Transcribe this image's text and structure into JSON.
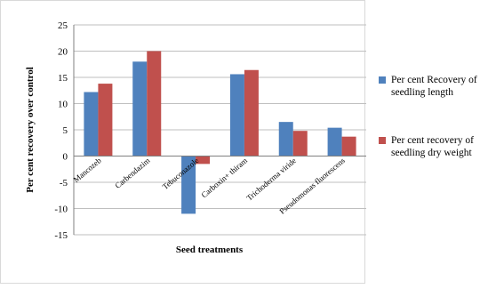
{
  "chart_data": {
    "type": "bar",
    "title": "",
    "xlabel": "Seed treatments",
    "ylabel": "Per cent recovery over control",
    "ylim": [
      -15,
      25
    ],
    "yticks": [
      -15,
      -10,
      -5,
      0,
      5,
      10,
      15,
      20,
      25
    ],
    "grid": true,
    "legend_position": "right",
    "categories": [
      "Mancozeb",
      "Carbendazim",
      "Tebuconazole",
      "Carboxin+ thiram",
      "Trichoderma viride",
      "Pseudomonas fluorescens"
    ],
    "series": [
      {
        "name": "Per cent Recovery of seedling length",
        "name_lines": [
          "Per cent Recovery of",
          "seedling length"
        ],
        "color": "#4F81BD",
        "values": [
          12.2,
          18.0,
          -11.0,
          15.6,
          6.5,
          5.4
        ]
      },
      {
        "name": "Per cent recovery of seedling dry weight",
        "name_lines": [
          "Per cent recovery of",
          "seedling dry weight"
        ],
        "color": "#C0504D",
        "values": [
          13.8,
          20.0,
          -1.5,
          16.4,
          4.8,
          3.7
        ]
      }
    ]
  }
}
